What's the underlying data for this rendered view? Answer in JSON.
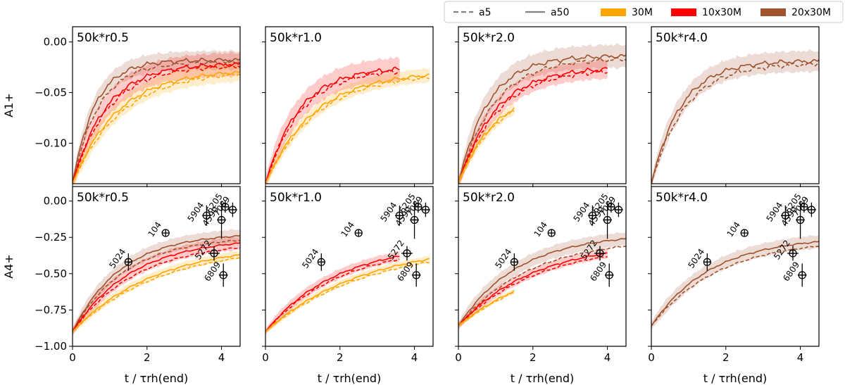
{
  "chart_data": {
    "type": "line",
    "legend": {
      "placement": "top-right",
      "entries": [
        {
          "label": "a5",
          "kind": "line",
          "style": "dashed",
          "color": "#808080"
        },
        {
          "label": "a50",
          "kind": "line",
          "style": "solid",
          "color": "#808080"
        },
        {
          "label": "30M",
          "kind": "patch",
          "color": "#ffa500"
        },
        {
          "label": "10x30M",
          "kind": "patch",
          "color": "#ff0000"
        },
        {
          "label": "20x30M",
          "kind": "patch",
          "color": "#a0522d"
        }
      ]
    },
    "colors": {
      "30M": "#ffa500",
      "10x30M": "#ff0000",
      "20x30M": "#a0522d"
    },
    "xlabel": "t / τrh(end)",
    "xlim": [
      0,
      4.5
    ],
    "xticks": [
      0,
      2,
      4
    ],
    "rows": [
      {
        "ylabel": "A1+",
        "ylim": [
          -0.14,
          0.015
        ],
        "yticks": [
          {
            "value": 0,
            "label": "0.00"
          },
          {
            "value": -0.05,
            "label": "−0.05"
          },
          {
            "value": -0.1,
            "label": "−0.10"
          }
        ]
      },
      {
        "ylabel": "A4+",
        "ylim": [
          -1.0,
          0.1
        ],
        "yticks": [
          {
            "value": 0,
            "label": "0.00"
          },
          {
            "value": -0.25,
            "label": "−0.25"
          },
          {
            "value": -0.5,
            "label": "−0.50"
          },
          {
            "value": -0.75,
            "label": "−0.75"
          },
          {
            "value": -1.0,
            "label": "−1.00"
          }
        ]
      }
    ],
    "columns": [
      "50k*r0.5",
      "50k*r1.0",
      "50k*r2.0",
      "50k*r4.0"
    ],
    "curve_model": "value(t) = y0 + (yend - y0) * (1 - exp(-t/tau)) / (1 - exp(-tend/tau)); shaded band is ±band around each curve",
    "panels": [
      {
        "row": 0,
        "col": 0,
        "title": "50k*r0.5",
        "series": [
          {
            "group": "30M",
            "variant": "a50",
            "y0": -0.14,
            "yend": -0.03,
            "tend": 4.5,
            "tau": 1.2,
            "band": 0.008
          },
          {
            "group": "30M",
            "variant": "a5",
            "y0": -0.14,
            "yend": -0.032,
            "tend": 4.5,
            "tau": 1.3,
            "band": 0.008
          },
          {
            "group": "10x30M",
            "variant": "a50",
            "y0": -0.14,
            "yend": -0.022,
            "tend": 4.5,
            "tau": 0.9,
            "band": 0.01
          },
          {
            "group": "10x30M",
            "variant": "a5",
            "y0": -0.14,
            "yend": -0.024,
            "tend": 4.5,
            "tau": 0.95,
            "band": 0.01
          },
          {
            "group": "20x30M",
            "variant": "a50",
            "y0": -0.14,
            "yend": -0.018,
            "tend": 4.5,
            "tau": 0.6,
            "band": 0.008
          },
          {
            "group": "20x30M",
            "variant": "a5",
            "y0": -0.14,
            "yend": -0.02,
            "tend": 4.5,
            "tau": 0.7,
            "band": 0.008
          }
        ]
      },
      {
        "row": 0,
        "col": 1,
        "title": "50k*r1.0",
        "series": [
          {
            "group": "30M",
            "variant": "a50",
            "y0": -0.14,
            "yend": -0.033,
            "tend": 4.4,
            "tau": 1.3,
            "band": 0.006
          },
          {
            "group": "30M",
            "variant": "a5",
            "y0": -0.14,
            "yend": -0.035,
            "tend": 4.4,
            "tau": 1.35,
            "band": 0.006
          },
          {
            "group": "10x30M",
            "variant": "a50",
            "y0": -0.14,
            "yend": -0.027,
            "tend": 3.6,
            "tau": 0.9,
            "band": 0.01
          },
          {
            "group": "10x30M",
            "variant": "a5",
            "y0": -0.14,
            "yend": -0.029,
            "tend": 3.6,
            "tau": 0.95,
            "band": 0.01
          }
        ]
      },
      {
        "row": 0,
        "col": 2,
        "title": "50k*r2.0",
        "series": [
          {
            "group": "30M",
            "variant": "a50",
            "y0": -0.14,
            "yend": -0.066,
            "tend": 1.5,
            "tau": 1.0,
            "band": 0.005
          },
          {
            "group": "30M",
            "variant": "a5",
            "y0": -0.14,
            "yend": -0.068,
            "tend": 1.5,
            "tau": 1.0,
            "band": 0.005
          },
          {
            "group": "10x30M",
            "variant": "a50",
            "y0": -0.14,
            "yend": -0.027,
            "tend": 4.0,
            "tau": 1.0,
            "band": 0.008
          },
          {
            "group": "10x30M",
            "variant": "a5",
            "y0": -0.14,
            "yend": -0.029,
            "tend": 4.0,
            "tau": 1.05,
            "band": 0.008
          },
          {
            "group": "20x30M",
            "variant": "a50",
            "y0": -0.14,
            "yend": -0.014,
            "tend": 4.5,
            "tau": 0.8,
            "band": 0.01
          },
          {
            "group": "20x30M",
            "variant": "a5",
            "y0": -0.14,
            "yend": -0.017,
            "tend": 4.5,
            "tau": 0.95,
            "band": 0.01
          }
        ]
      },
      {
        "row": 0,
        "col": 3,
        "title": "50k*r4.0",
        "series": [
          {
            "group": "20x30M",
            "variant": "a50",
            "y0": -0.14,
            "yend": -0.019,
            "tend": 4.5,
            "tau": 0.8,
            "band": 0.009
          },
          {
            "group": "20x30M",
            "variant": "a5",
            "y0": -0.14,
            "yend": -0.022,
            "tend": 4.5,
            "tau": 0.9,
            "band": 0.009
          }
        ]
      },
      {
        "row": 1,
        "col": 0,
        "title": "50k*r0.5",
        "series": [
          {
            "group": "30M",
            "variant": "a50",
            "y0": -0.9,
            "yend": -0.37,
            "tend": 4.5,
            "tau": 2.2,
            "band": 0.025
          },
          {
            "group": "30M",
            "variant": "a5",
            "y0": -0.9,
            "yend": -0.39,
            "tend": 4.5,
            "tau": 2.3,
            "band": 0.025
          },
          {
            "group": "10x30M",
            "variant": "a50",
            "y0": -0.9,
            "yend": -0.29,
            "tend": 4.5,
            "tau": 1.6,
            "band": 0.04
          },
          {
            "group": "10x30M",
            "variant": "a5",
            "y0": -0.9,
            "yend": -0.32,
            "tend": 4.5,
            "tau": 1.7,
            "band": 0.04
          },
          {
            "group": "20x30M",
            "variant": "a50",
            "y0": -0.9,
            "yend": -0.24,
            "tend": 4.5,
            "tau": 1.3,
            "band": 0.04
          },
          {
            "group": "20x30M",
            "variant": "a5",
            "y0": -0.9,
            "yend": -0.27,
            "tend": 4.5,
            "tau": 1.4,
            "band": 0.04
          }
        ]
      },
      {
        "row": 1,
        "col": 1,
        "title": "50k*r1.0",
        "series": [
          {
            "group": "30M",
            "variant": "a50",
            "y0": -0.9,
            "yend": -0.4,
            "tend": 4.4,
            "tau": 2.6,
            "band": 0.02
          },
          {
            "group": "30M",
            "variant": "a5",
            "y0": -0.9,
            "yend": -0.42,
            "tend": 4.4,
            "tau": 2.7,
            "band": 0.02
          },
          {
            "group": "10x30M",
            "variant": "a50",
            "y0": -0.9,
            "yend": -0.38,
            "tend": 3.6,
            "tau": 1.9,
            "band": 0.03
          },
          {
            "group": "10x30M",
            "variant": "a5",
            "y0": -0.9,
            "yend": -0.4,
            "tend": 3.6,
            "tau": 2.0,
            "band": 0.03
          }
        ]
      },
      {
        "row": 1,
        "col": 2,
        "title": "50k*r2.0",
        "series": [
          {
            "group": "30M",
            "variant": "a50",
            "y0": -0.86,
            "yend": -0.62,
            "tend": 1.5,
            "tau": 2.5,
            "band": 0.015
          },
          {
            "group": "30M",
            "variant": "a5",
            "y0": -0.86,
            "yend": -0.63,
            "tend": 1.5,
            "tau": 2.5,
            "band": 0.015
          },
          {
            "group": "10x30M",
            "variant": "a50",
            "y0": -0.86,
            "yend": -0.36,
            "tend": 4.0,
            "tau": 2.0,
            "band": 0.03
          },
          {
            "group": "10x30M",
            "variant": "a5",
            "y0": -0.86,
            "yend": -0.38,
            "tend": 4.0,
            "tau": 2.1,
            "band": 0.03
          },
          {
            "group": "20x30M",
            "variant": "a50",
            "y0": -0.86,
            "yend": -0.26,
            "tend": 4.5,
            "tau": 1.6,
            "band": 0.04
          },
          {
            "group": "20x30M",
            "variant": "a5",
            "y0": -0.86,
            "yend": -0.31,
            "tend": 4.5,
            "tau": 1.9,
            "band": 0.04
          }
        ]
      },
      {
        "row": 1,
        "col": 3,
        "title": "50k*r4.0",
        "series": [
          {
            "group": "20x30M",
            "variant": "a50",
            "y0": -0.86,
            "yend": -0.28,
            "tend": 4.5,
            "tau": 1.6,
            "band": 0.04
          },
          {
            "group": "20x30M",
            "variant": "a5",
            "y0": -0.86,
            "yend": -0.31,
            "tend": 4.5,
            "tau": 1.8,
            "band": 0.04
          }
        ]
      }
    ],
    "observations": [
      {
        "label": "104",
        "x": 2.5,
        "y": -0.22,
        "xerr": 0,
        "yerr": 0
      },
      {
        "label": "5024",
        "x": 1.5,
        "y": -0.42,
        "xerr": 0.08,
        "yerr": 0.06
      },
      {
        "label": "5904",
        "x": 3.6,
        "y": -0.1,
        "xerr": 0.12,
        "yerr": 0.07
      },
      {
        "label": "4590",
        "x": 4.0,
        "y": -0.13,
        "xerr": 0.12,
        "yerr": 0.13
      },
      {
        "label": "6205",
        "x": 4.1,
        "y": -0.04,
        "xerr": 0.1,
        "yerr": 0.04
      },
      {
        "label": "7089",
        "x": 4.3,
        "y": -0.06,
        "xerr": 0.12,
        "yerr": 0.05
      },
      {
        "label": "5272",
        "x": 3.8,
        "y": -0.36,
        "xerr": 0.15,
        "yerr": 0.05
      },
      {
        "label": "6809",
        "x": 4.05,
        "y": -0.51,
        "xerr": 0.12,
        "yerr": 0.08
      }
    ]
  }
}
